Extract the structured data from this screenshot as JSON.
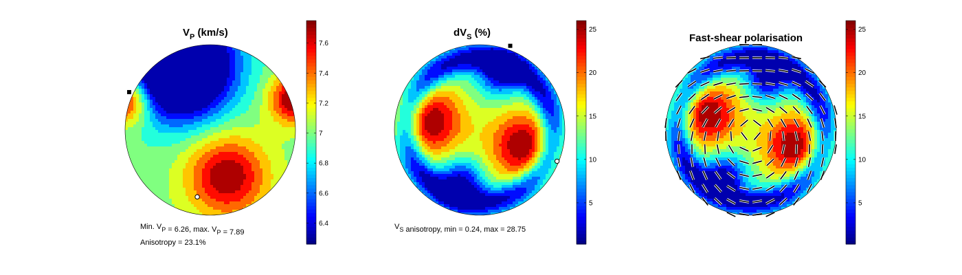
{
  "colors": {
    "background": "#ffffff",
    "colormap": "jet",
    "min_marker": "#ffffff",
    "max_marker": "#000000"
  },
  "chart_data": [
    {
      "type": "heatmap",
      "projection": "lower-hemisphere-pole-figure",
      "title_main": "V",
      "title_sub": "P",
      "title_rest": " (km/s)",
      "colorbar": {
        "clim": [
          6.26,
          7.75
        ],
        "ticks": [
          6.4,
          6.6,
          6.8,
          7,
          7.2,
          7.4,
          7.6
        ],
        "tick_labels": [
          "6.4",
          "6.6",
          "6.8",
          "7",
          "7.2",
          "7.4",
          "7.6"
        ]
      },
      "field": {
        "base": 7.0,
        "blobs": [
          {
            "az": -70,
            "r": 0.58,
            "amp": 0.75,
            "s": 0.33
          },
          {
            "az": 110,
            "r": 0.85,
            "amp": -0.85,
            "s": 0.4
          },
          {
            "az": -60,
            "r": -0.8,
            "amp": -0.85,
            "s": 0.4
          },
          {
            "az": 160,
            "r": 1.05,
            "amp": 0.8,
            "s": 0.2
          },
          {
            "az": 20,
            "r": 1.05,
            "amp": 0.8,
            "s": 0.2
          }
        ]
      },
      "min_marker": {
        "az": -101,
        "r": 0.8
      },
      "max_marker": {
        "az": 155,
        "r": 1.05
      },
      "annotations": [
        {
          "parts": [
            [
              "Min. V",
              ""
            ],
            [
              "P",
              "sub"
            ],
            [
              " =  6.26, max. V",
              ""
            ],
            [
              "P",
              "sub"
            ],
            [
              " =  7.89",
              ""
            ]
          ]
        },
        {
          "parts": [
            [
              "Anisotropy =  23.1%",
              ""
            ]
          ]
        }
      ]
    },
    {
      "type": "heatmap",
      "projection": "lower-hemisphere-pole-figure",
      "title_main": "dV",
      "title_sub": "S",
      "title_rest": " (%)",
      "colorbar": {
        "clim": [
          0.24,
          26
        ],
        "ticks": [
          5,
          10,
          15,
          20,
          25
        ],
        "tick_labels": [
          "5",
          "10",
          "15",
          "20",
          "25"
        ]
      },
      "field": {
        "base": 12,
        "ring": {
          "r0": 0.85,
          "amp": -11,
          "s": 0.11
        },
        "blobs": [
          {
            "az": 170,
            "r": 0.6,
            "amp": 14,
            "s": 0.3
          },
          {
            "az": -20,
            "r": 0.55,
            "amp": 14,
            "s": 0.3
          },
          {
            "az": 70,
            "r": 0.72,
            "amp": -11,
            "s": 0.18
          },
          {
            "az": -110,
            "r": 0.65,
            "amp": -11,
            "s": 0.18
          }
        ]
      },
      "min_marker": {
        "az": -22,
        "r": 0.98
      },
      "max_marker": {
        "az": 70,
        "r": 1.05
      },
      "annotations": [
        {
          "parts": [
            [
              "V",
              ""
            ],
            [
              "S",
              "sub"
            ],
            [
              " anisotropy, min =  0.24, max = 28.75",
              ""
            ]
          ]
        }
      ]
    },
    {
      "type": "heatmap",
      "projection": "lower-hemisphere-pole-figure",
      "title_main": "Fast-shear polarisation",
      "title_sub": "",
      "title_rest": "",
      "colorbar": {
        "clim": [
          0.24,
          26
        ],
        "ticks": [
          5,
          10,
          15,
          20,
          25
        ],
        "tick_labels": [
          "5",
          "10",
          "15",
          "20",
          "25"
        ]
      },
      "field": {
        "base": 12,
        "ring": {
          "r0": 0.85,
          "amp": -11,
          "s": 0.11
        },
        "blobs": [
          {
            "az": 160,
            "r": 0.55,
            "amp": 14,
            "s": 0.28
          },
          {
            "az": -20,
            "r": 0.55,
            "amp": 14,
            "s": 0.28
          },
          {
            "az": 72,
            "r": 0.62,
            "amp": -11,
            "s": 0.17
          },
          {
            "az": -120,
            "r": 0.62,
            "amp": -11,
            "s": 0.17
          }
        ]
      },
      "polarisation_ticks": true,
      "annotations": []
    }
  ]
}
